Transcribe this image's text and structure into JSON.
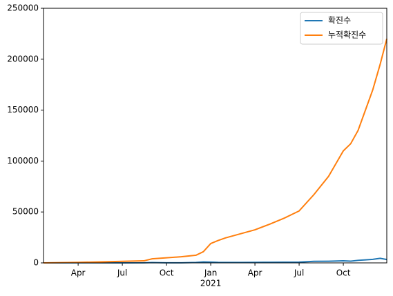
{
  "chart_data": {
    "type": "line",
    "x": [
      0.65,
      3,
      6,
      7.46,
      8.02,
      9,
      10,
      11,
      11.5,
      12,
      12.5,
      13,
      14,
      15,
      16,
      17,
      18,
      19,
      20,
      21,
      21.5,
      22,
      22.5,
      23,
      23.5,
      23.95
    ],
    "series": [
      {
        "name": "확진수",
        "color": "#1f77b4",
        "values": [
          0,
          80,
          40,
          60,
          300,
          80,
          100,
          400,
          900,
          800,
          500,
          400,
          450,
          550,
          600,
          650,
          800,
          1500,
          1600,
          2000,
          1700,
          2500,
          3000,
          3500,
          4500,
          3300
        ]
      },
      {
        "name": "누적확진수",
        "color": "#ff7f0e",
        "values": [
          0,
          500,
          1500,
          2000,
          4000,
          5000,
          6000,
          7500,
          11000,
          19000,
          22000,
          24500,
          28500,
          32500,
          38000,
          44000,
          51000,
          67000,
          85000,
          110000,
          117000,
          130000,
          150000,
          170000,
          195000,
          220000
        ]
      }
    ],
    "xlim": [
      0.65,
      23.95
    ],
    "xticks": [
      {
        "value": 3,
        "label": "Apr"
      },
      {
        "value": 6,
        "label": "Jul"
      },
      {
        "value": 9,
        "label": "Oct"
      },
      {
        "value": 12,
        "label": "Jan"
      },
      {
        "value": 15,
        "label": "Apr"
      },
      {
        "value": 18,
        "label": "Jul"
      },
      {
        "value": 21,
        "label": "Oct"
      }
    ],
    "xtick_year": {
      "value": 12,
      "label": "2021"
    },
    "ylim": [
      0,
      250000
    ],
    "yticks": [
      0,
      50000,
      100000,
      150000,
      200000,
      250000
    ],
    "legend": "upper right"
  }
}
